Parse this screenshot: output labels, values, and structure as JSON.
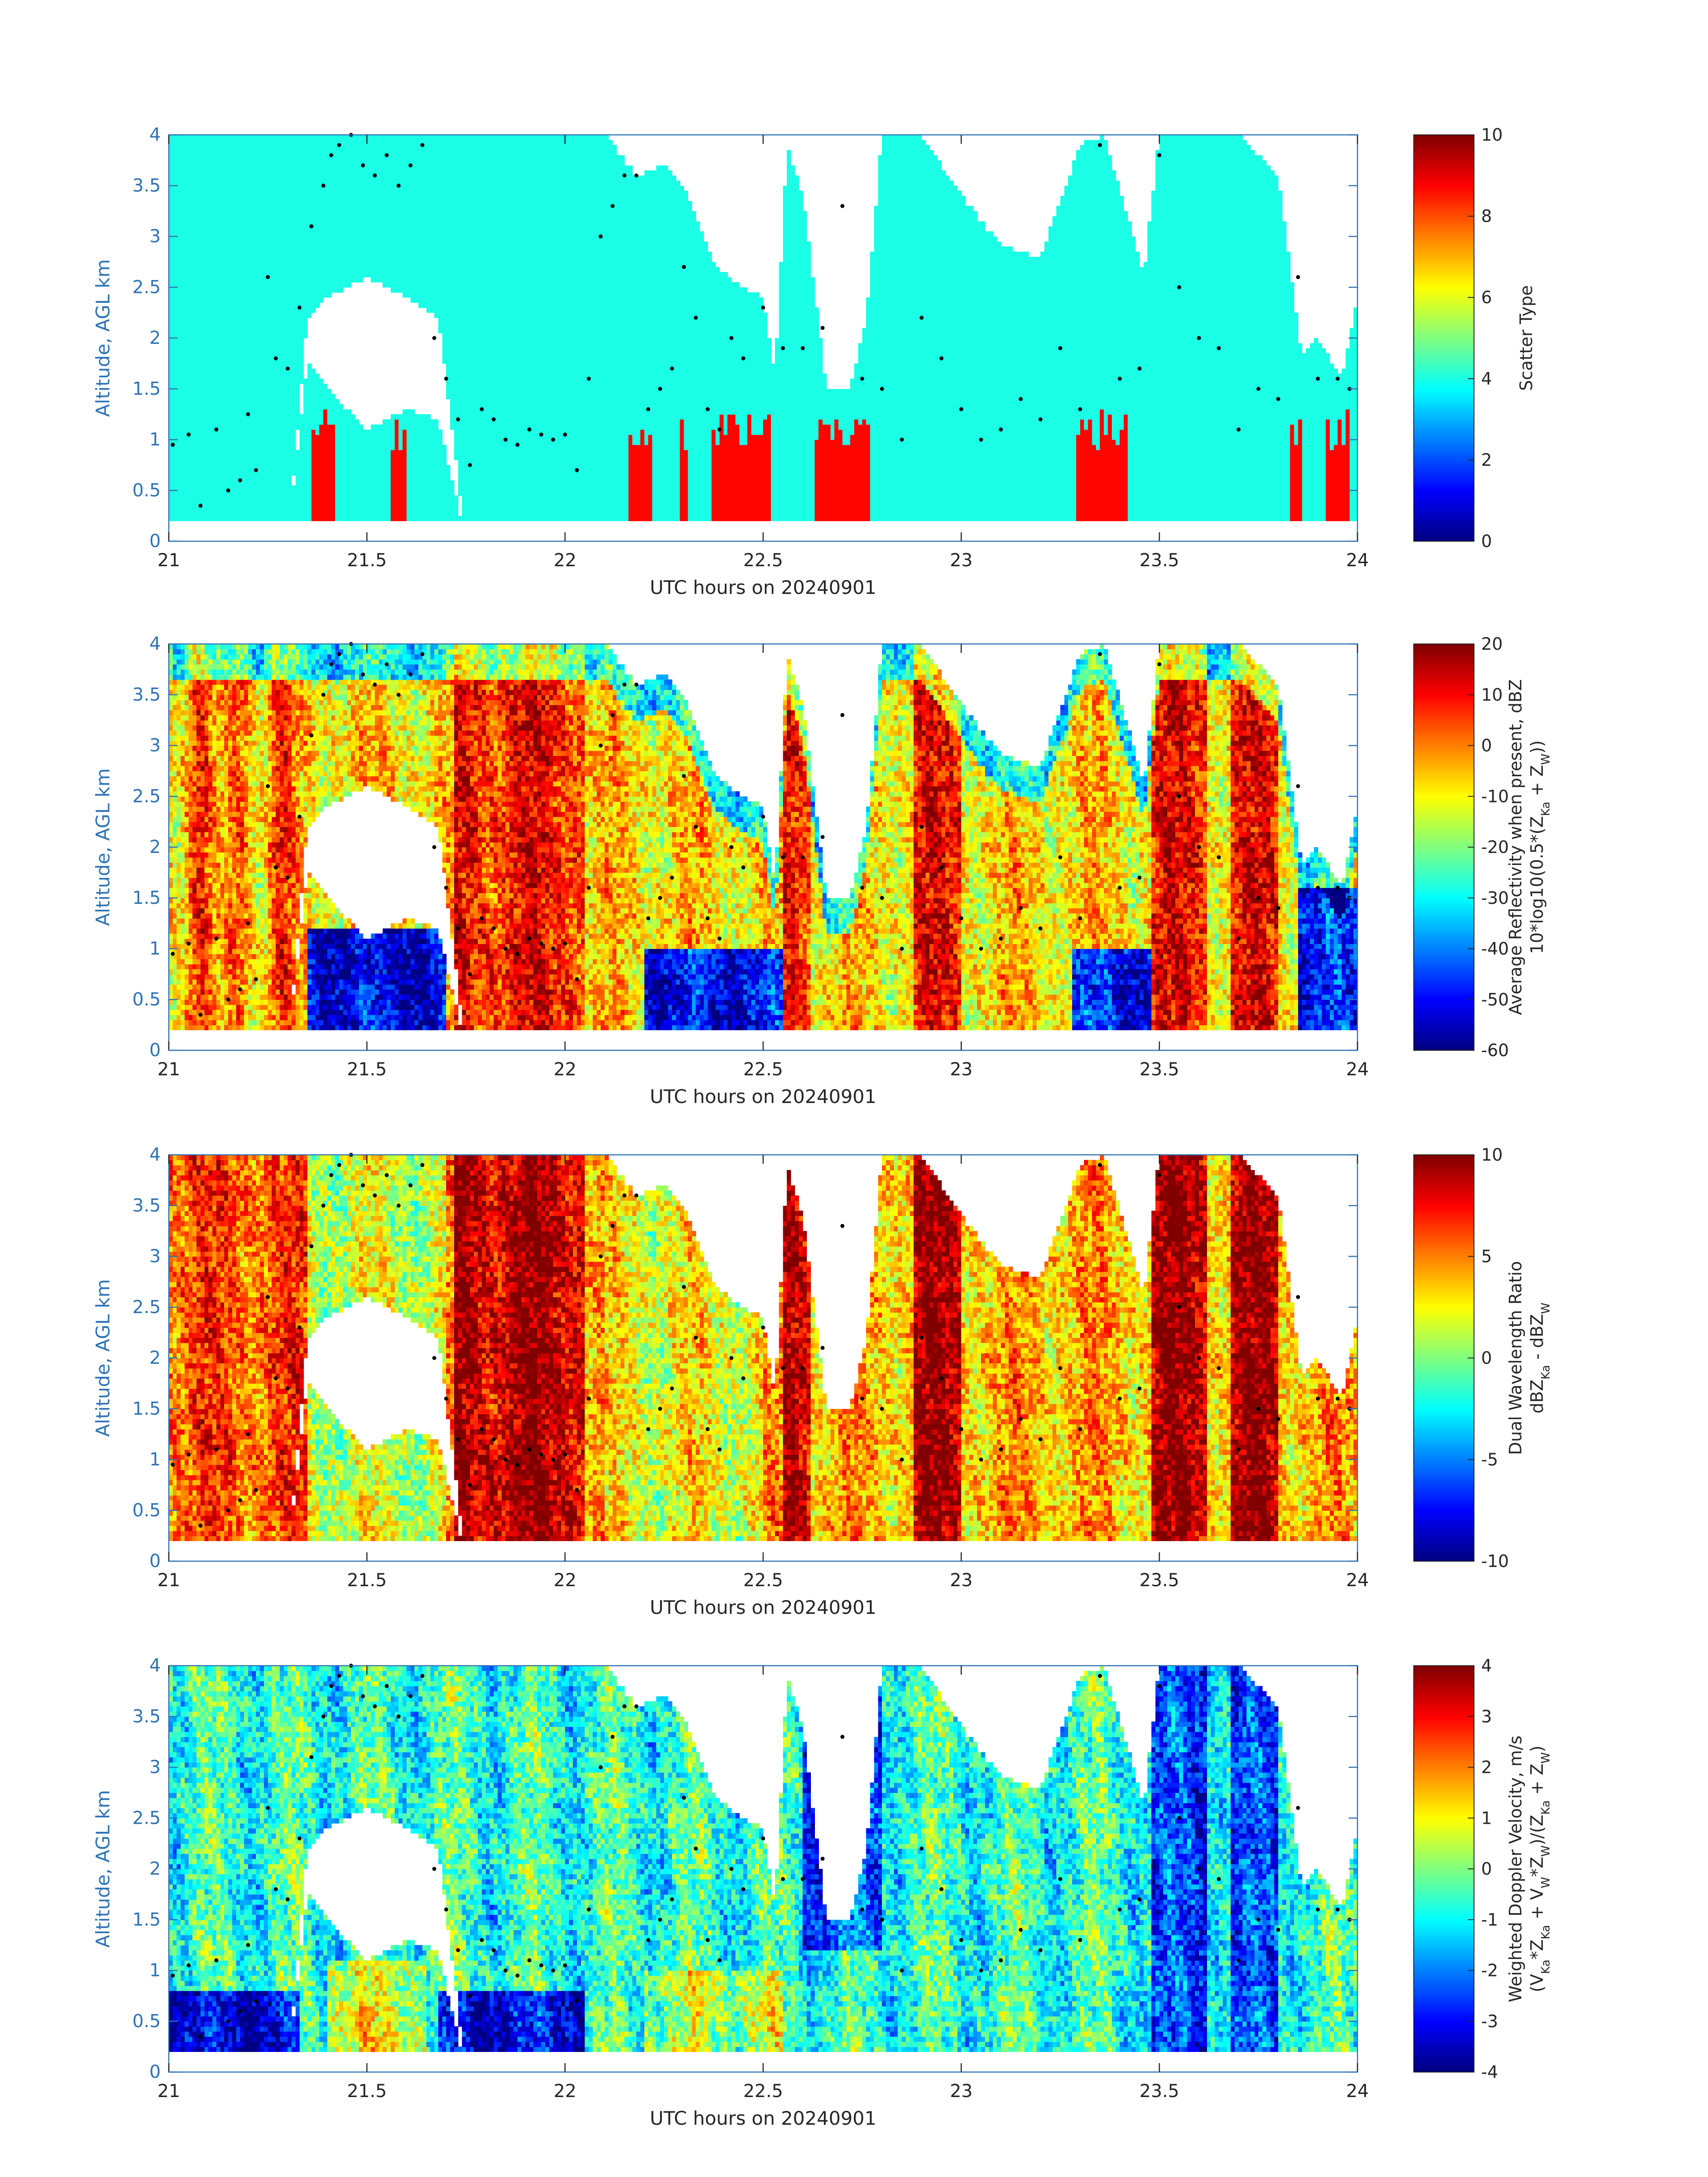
{
  "figure": {
    "background": "#ffffff"
  },
  "chart_data": [
    {
      "type": "heatmap",
      "colormap": "jet",
      "xlabel": "UTC hours on 20240901",
      "ylabel": "Altitude, AGL km",
      "xlim": [
        21,
        24
      ],
      "ylim": [
        0,
        4
      ],
      "xticks": [
        21,
        21.5,
        22,
        22.5,
        23,
        23.5,
        24
      ],
      "xtick_labels": [
        "21",
        "21.5",
        "22",
        "22.5",
        "23",
        "23.5",
        "24"
      ],
      "yticks": [
        0,
        0.5,
        1,
        1.5,
        2,
        2.5,
        3,
        3.5,
        4
      ],
      "ytick_labels": [
        "0",
        "0.5",
        "1",
        "1.5",
        "2",
        "2.5",
        "3",
        "3.5",
        "4"
      ],
      "colorbar": {
        "label": [
          "Scatter Type"
        ],
        "clim": [
          0,
          10
        ],
        "ticks": [
          0,
          2,
          4,
          6,
          8,
          10
        ],
        "tick_labels": [
          "0",
          "2",
          "4",
          "6",
          "8",
          "10"
        ]
      },
      "field": "scatter_type",
      "dominant_value": 4,
      "secondary_value": 8.7,
      "secondary_regions_utc": [
        [
          21.36,
          21.42
        ],
        [
          21.56,
          21.6
        ],
        [
          22.16,
          22.22
        ],
        [
          22.29,
          22.31
        ],
        [
          22.37,
          22.52
        ],
        [
          22.63,
          22.77
        ],
        [
          23.29,
          23.42
        ],
        [
          23.83,
          23.86
        ],
        [
          23.92,
          23.98
        ]
      ],
      "grid": false
    },
    {
      "type": "heatmap",
      "colormap": "jet",
      "xlabel": "UTC hours on 20240901",
      "ylabel": "Altitude, AGL km",
      "xlim": [
        21,
        24
      ],
      "ylim": [
        0,
        4
      ],
      "xticks": [
        21,
        21.5,
        22,
        22.5,
        23,
        23.5,
        24
      ],
      "xtick_labels": [
        "21",
        "21.5",
        "22",
        "22.5",
        "23",
        "23.5",
        "24"
      ],
      "yticks": [
        0,
        0.5,
        1,
        1.5,
        2,
        2.5,
        3,
        3.5,
        4
      ],
      "ytick_labels": [
        "0",
        "0.5",
        "1",
        "1.5",
        "2",
        "2.5",
        "3",
        "3.5",
        "4"
      ],
      "colorbar": {
        "label": [
          "Average Reflectivity when present, dBZ",
          "10*log10(0.5*(Z{Ka} + Z{W}))"
        ],
        "clim": [
          -60,
          20
        ],
        "ticks": [
          -60,
          -50,
          -40,
          -30,
          -20,
          -10,
          0,
          10,
          20
        ],
        "tick_labels": [
          "-60",
          "-50",
          "-40",
          "-30",
          "-20",
          "-10",
          "0",
          "10",
          "20"
        ]
      },
      "field": "reflectivity",
      "grid": false
    },
    {
      "type": "heatmap",
      "colormap": "jet",
      "xlabel": "UTC hours on 20240901",
      "ylabel": "Altitude, AGL km",
      "xlim": [
        21,
        24
      ],
      "ylim": [
        0,
        4
      ],
      "xticks": [
        21,
        21.5,
        22,
        22.5,
        23,
        23.5,
        24
      ],
      "xtick_labels": [
        "21",
        "21.5",
        "22",
        "22.5",
        "23",
        "23.5",
        "24"
      ],
      "yticks": [
        0,
        0.5,
        1,
        1.5,
        2,
        2.5,
        3,
        3.5,
        4
      ],
      "ytick_labels": [
        "0",
        "0.5",
        "1",
        "1.5",
        "2",
        "2.5",
        "3",
        "3.5",
        "4"
      ],
      "colorbar": {
        "label": [
          "Dual Wavelength Ratio",
          "dBZ{Ka} - dBZ{W}"
        ],
        "clim": [
          -10,
          10
        ],
        "ticks": [
          -10,
          -5,
          0,
          5,
          10
        ],
        "tick_labels": [
          "-10",
          "-5",
          "0",
          "5",
          "10"
        ]
      },
      "field": "dual_wavelength_ratio",
      "grid": false
    },
    {
      "type": "heatmap",
      "colormap": "jet",
      "xlabel": "UTC hours on 20240901",
      "ylabel": "Altitude, AGL km",
      "xlim": [
        21,
        24
      ],
      "ylim": [
        0,
        4
      ],
      "xticks": [
        21,
        21.5,
        22,
        22.5,
        23,
        23.5,
        24
      ],
      "xtick_labels": [
        "21",
        "21.5",
        "22",
        "22.5",
        "23",
        "23.5",
        "24"
      ],
      "yticks": [
        0,
        0.5,
        1,
        1.5,
        2,
        2.5,
        3,
        3.5,
        4
      ],
      "ytick_labels": [
        "0",
        "0.5",
        "1",
        "1.5",
        "2",
        "2.5",
        "3",
        "3.5",
        "4"
      ],
      "colorbar": {
        "label": [
          "Weighted Doppler Velocity, m/s",
          "(V{Ka}*Z{Ka} + V{W}*Z{W})/(Z{Ka} + Z{W})"
        ],
        "clim": [
          -4,
          4
        ],
        "ticks": [
          -4,
          -3,
          -2,
          -1,
          0,
          1,
          2,
          3,
          4
        ],
        "tick_labels": [
          "-4",
          "-3",
          "-2",
          "-1",
          "0",
          "1",
          "2",
          "3",
          "4"
        ]
      },
      "field": "doppler_velocity",
      "grid": false
    }
  ],
  "cloud_extent": {
    "utc": [
      21.0,
      21.1,
      21.2,
      21.3,
      21.35,
      21.4,
      21.5,
      21.6,
      21.68,
      21.75,
      21.9,
      22.0,
      22.1,
      22.18,
      22.25,
      22.3,
      22.38,
      22.45,
      22.5,
      22.53,
      22.56,
      22.6,
      22.66,
      22.72,
      22.76,
      22.8,
      22.9,
      23.0,
      23.1,
      23.2,
      23.3,
      23.36,
      23.42,
      23.46,
      23.5,
      23.6,
      23.7,
      23.8,
      23.86,
      23.9,
      23.96,
      24.0
    ],
    "top_km": [
      4.0,
      4.0,
      4.0,
      4.0,
      4.0,
      4.0,
      4.0,
      4.0,
      4.0,
      4.0,
      4.0,
      4.0,
      4.0,
      3.6,
      3.7,
      3.5,
      2.7,
      2.5,
      2.4,
      1.6,
      3.9,
      3.4,
      1.5,
      1.5,
      2.2,
      4.0,
      4.0,
      3.4,
      2.9,
      2.8,
      3.9,
      4.0,
      3.2,
      2.6,
      4.0,
      4.0,
      4.0,
      3.6,
      1.8,
      2.0,
      1.6,
      2.4
    ],
    "gap_bottom_km": [
      0,
      0,
      0,
      0,
      1.8,
      1.5,
      1.1,
      1.3,
      1.2,
      0,
      0,
      0,
      0,
      0,
      0,
      0,
      0,
      0,
      0,
      0,
      0,
      0,
      0,
      0,
      0,
      0,
      0,
      0,
      0,
      0,
      0,
      0,
      0,
      0,
      0,
      0,
      0,
      0,
      0,
      0,
      0,
      0
    ],
    "gap_top_km": [
      0,
      0,
      0,
      0,
      2.2,
      2.4,
      2.6,
      2.4,
      2.2,
      0,
      0,
      0,
      0,
      0,
      0,
      0,
      0,
      0,
      0,
      0,
      0,
      0,
      0,
      0,
      0,
      0,
      0,
      0,
      0,
      0,
      0,
      0,
      0,
      0,
      0,
      0,
      0,
      0,
      0,
      0,
      0,
      0
    ],
    "low_echo_top_km": [
      0,
      0,
      0,
      0,
      0.3,
      0.45,
      0.6,
      0.6,
      0.5,
      0,
      0,
      0,
      0,
      0,
      0,
      0,
      0.9,
      0.9,
      1.0,
      0,
      0,
      0,
      1.0,
      1.0,
      0,
      0,
      0,
      0,
      0,
      0,
      1.1,
      1.1,
      0.8,
      0,
      0,
      0,
      0,
      0,
      0,
      0,
      0,
      0
    ],
    "base_km": 0.2
  },
  "lidar_cloud_base": {
    "utc": [
      21.01,
      21.05,
      21.08,
      21.12,
      21.15,
      21.18,
      21.2,
      21.22,
      21.25,
      21.27,
      21.3,
      21.33,
      21.36,
      21.39,
      21.41,
      21.43,
      21.46,
      21.49,
      21.52,
      21.55,
      21.58,
      21.61,
      21.64,
      21.67,
      21.7,
      21.73,
      21.76,
      21.79,
      21.82,
      21.85,
      21.88,
      21.91,
      21.94,
      21.97,
      22.0,
      22.03,
      22.06,
      22.09,
      22.12,
      22.15,
      22.18,
      22.21,
      22.24,
      22.27,
      22.3,
      22.33,
      22.36,
      22.39,
      22.42,
      22.45,
      22.5,
      22.55,
      22.6,
      22.65,
      22.7,
      22.75,
      22.8,
      22.85,
      22.9,
      22.95,
      23.0,
      23.05,
      23.1,
      23.15,
      23.2,
      23.25,
      23.3,
      23.35,
      23.4,
      23.45,
      23.5,
      23.55,
      23.6,
      23.65,
      23.7,
      23.75,
      23.8,
      23.85,
      23.9,
      23.95,
      23.98
    ],
    "alt_km": [
      0.95,
      1.05,
      0.35,
      1.1,
      0.5,
      0.6,
      1.25,
      0.7,
      2.6,
      1.8,
      1.7,
      2.3,
      3.1,
      3.5,
      3.8,
      3.9,
      4.0,
      3.7,
      3.6,
      3.8,
      3.5,
      3.7,
      3.9,
      2.0,
      1.6,
      1.2,
      0.75,
      1.3,
      1.2,
      1.0,
      0.95,
      1.1,
      1.05,
      1.0,
      1.05,
      0.7,
      1.6,
      3.0,
      3.3,
      3.6,
      3.6,
      1.3,
      1.5,
      1.7,
      2.7,
      2.2,
      1.3,
      1.1,
      2.0,
      1.8,
      2.3,
      1.9,
      1.9,
      2.1,
      3.3,
      1.6,
      1.5,
      1.0,
      2.2,
      1.8,
      1.3,
      1.0,
      1.1,
      1.4,
      1.2,
      1.9,
      1.3,
      3.9,
      1.6,
      1.7,
      3.8,
      2.5,
      2.0,
      1.9,
      1.1,
      1.5,
      1.4,
      2.6,
      1.6,
      1.6,
      1.5
    ]
  }
}
